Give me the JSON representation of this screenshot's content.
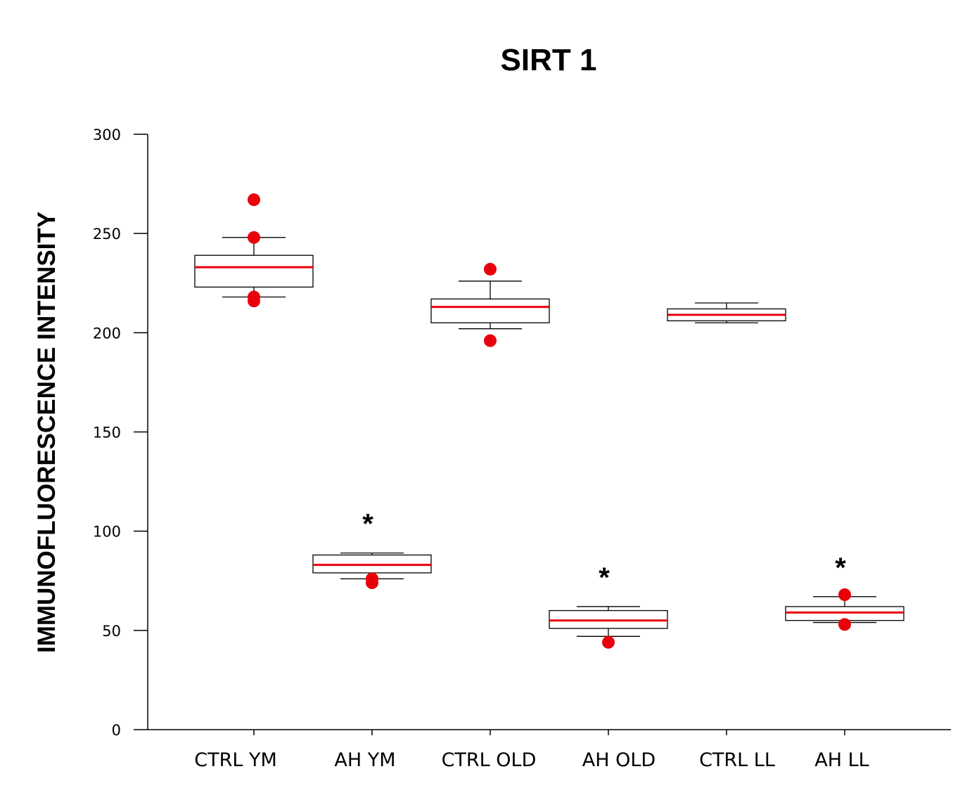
{
  "chart_data": {
    "type": "box",
    "title": "SIRT 1",
    "xlabel": "",
    "ylabel": "IMMUNOFLUORESCENCE INTENSITY",
    "ylim": [
      0,
      300
    ],
    "yticks": [
      "0",
      "50",
      "100",
      "150",
      "200",
      "250",
      "300"
    ],
    "grid": false,
    "median_color": "#e8000b",
    "outlier_color": "#e8000b",
    "categories": [
      "CTRL YM",
      "AH YM",
      "CTRL OLD",
      "AH OLD",
      "CTRL LL",
      "AH LL"
    ],
    "boxes": [
      {
        "name": "CTRL YM",
        "whisker_low": 218,
        "q1": 223,
        "median": 233,
        "q3": 239,
        "whisker_high": 248,
        "outliers": [
          267,
          248,
          218,
          216
        ],
        "significance": ""
      },
      {
        "name": "AH YM",
        "whisker_low": 76,
        "q1": 79,
        "median": 83,
        "q3": 88,
        "whisker_high": 89,
        "outliers": [
          76,
          74
        ],
        "significance": "*"
      },
      {
        "name": "CTRL OLD",
        "whisker_low": 202,
        "q1": 205,
        "median": 213,
        "q3": 217,
        "whisker_high": 226,
        "outliers": [
          232,
          196
        ],
        "significance": ""
      },
      {
        "name": "AH OLD",
        "whisker_low": 47,
        "q1": 51,
        "median": 55,
        "q3": 60,
        "whisker_high": 62,
        "outliers": [
          44
        ],
        "significance": "*"
      },
      {
        "name": "CTRL LL",
        "whisker_low": 205,
        "q1": 206,
        "median": 209,
        "q3": 212,
        "whisker_high": 215,
        "outliers": [],
        "significance": ""
      },
      {
        "name": "AH LL",
        "whisker_low": 54,
        "q1": 55,
        "median": 59,
        "q3": 62,
        "whisker_high": 67,
        "outliers": [
          68,
          53
        ],
        "significance": "*"
      }
    ]
  }
}
